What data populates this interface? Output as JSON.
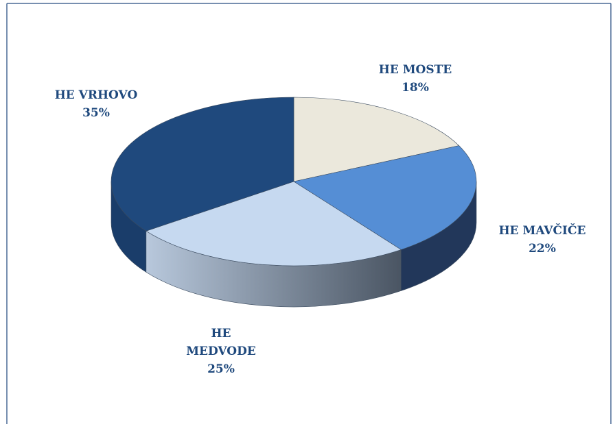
{
  "chart_data": {
    "type": "pie",
    "categories": [
      "HE MOSTE",
      "HE MAVČIČE",
      "HE MEDVODE",
      "HE VRHOVO"
    ],
    "values": [
      18,
      22,
      25,
      35
    ],
    "value_labels": [
      "18%",
      "22%",
      "25%",
      "35%"
    ],
    "colors": [
      "#ebe8dc",
      "#558ed5",
      "#c6d9f0",
      "#1f497d"
    ]
  }
}
